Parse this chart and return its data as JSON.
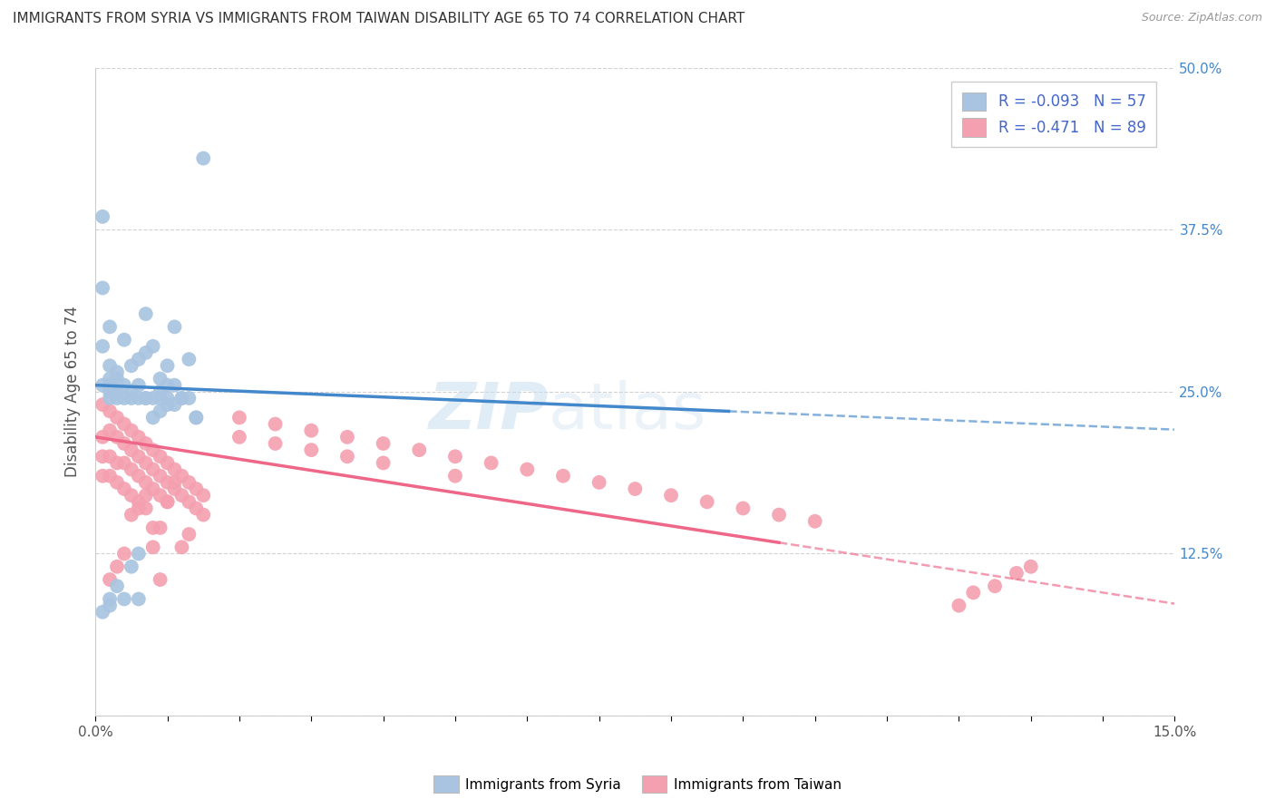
{
  "title": "IMMIGRANTS FROM SYRIA VS IMMIGRANTS FROM TAIWAN DISABILITY AGE 65 TO 74 CORRELATION CHART",
  "source": "Source: ZipAtlas.com",
  "ylabel": "Disability Age 65 to 74",
  "xlim": [
    0.0,
    0.15
  ],
  "ylim": [
    0.0,
    0.5
  ],
  "grid_color": "#cccccc",
  "background_color": "#ffffff",
  "syria_color": "#a8c4e0",
  "taiwan_color": "#f4a0b0",
  "syria_line_color": "#4488cc",
  "taiwan_line_color": "#ee6688",
  "syria_R": -0.093,
  "syria_N": 57,
  "taiwan_R": -0.471,
  "taiwan_N": 89,
  "watermark_zip": "ZIP",
  "watermark_atlas": "atlas",
  "legend_label_syria": "Immigrants from Syria",
  "legend_label_taiwan": "Immigrants from Taiwan",
  "syria_line_x0": 0.0,
  "syria_line_y0": 0.255,
  "syria_line_x1": 0.14,
  "syria_line_y1": 0.223,
  "taiwan_line_x0": 0.0,
  "taiwan_line_y0": 0.215,
  "taiwan_line_x1": 0.14,
  "taiwan_line_y1": 0.095,
  "syria_scatter_x": [
    0.001,
    0.001,
    0.001,
    0.001,
    0.002,
    0.002,
    0.002,
    0.002,
    0.002,
    0.002,
    0.003,
    0.003,
    0.003,
    0.003,
    0.003,
    0.004,
    0.004,
    0.004,
    0.005,
    0.005,
    0.005,
    0.006,
    0.006,
    0.006,
    0.007,
    0.007,
    0.007,
    0.008,
    0.008,
    0.009,
    0.009,
    0.009,
    0.01,
    0.01,
    0.01,
    0.011,
    0.011,
    0.012,
    0.013,
    0.013,
    0.014,
    0.001,
    0.002,
    0.002,
    0.003,
    0.004,
    0.005,
    0.006,
    0.006,
    0.007,
    0.008,
    0.009,
    0.01,
    0.011,
    0.012,
    0.014,
    0.015
  ],
  "syria_scatter_y": [
    0.255,
    0.285,
    0.33,
    0.385,
    0.245,
    0.25,
    0.255,
    0.26,
    0.27,
    0.3,
    0.245,
    0.25,
    0.255,
    0.26,
    0.265,
    0.245,
    0.255,
    0.29,
    0.245,
    0.25,
    0.27,
    0.245,
    0.255,
    0.275,
    0.245,
    0.28,
    0.31,
    0.245,
    0.285,
    0.245,
    0.25,
    0.26,
    0.245,
    0.255,
    0.27,
    0.255,
    0.3,
    0.245,
    0.245,
    0.275,
    0.23,
    0.08,
    0.085,
    0.09,
    0.1,
    0.09,
    0.115,
    0.09,
    0.125,
    0.245,
    0.23,
    0.235,
    0.24,
    0.24,
    0.245,
    0.23,
    0.43
  ],
  "taiwan_scatter_x": [
    0.001,
    0.001,
    0.001,
    0.001,
    0.002,
    0.002,
    0.002,
    0.002,
    0.003,
    0.003,
    0.003,
    0.003,
    0.004,
    0.004,
    0.004,
    0.004,
    0.005,
    0.005,
    0.005,
    0.005,
    0.006,
    0.006,
    0.006,
    0.006,
    0.007,
    0.007,
    0.007,
    0.007,
    0.008,
    0.008,
    0.008,
    0.009,
    0.009,
    0.009,
    0.01,
    0.01,
    0.01,
    0.011,
    0.011,
    0.012,
    0.012,
    0.013,
    0.013,
    0.014,
    0.014,
    0.015,
    0.015,
    0.02,
    0.02,
    0.025,
    0.025,
    0.03,
    0.03,
    0.035,
    0.035,
    0.04,
    0.04,
    0.045,
    0.05,
    0.05,
    0.055,
    0.06,
    0.065,
    0.07,
    0.075,
    0.08,
    0.085,
    0.09,
    0.095,
    0.1,
    0.002,
    0.003,
    0.004,
    0.005,
    0.006,
    0.007,
    0.008,
    0.009,
    0.01,
    0.011,
    0.012,
    0.013,
    0.125,
    0.13,
    0.12,
    0.128,
    0.122,
    0.008,
    0.009
  ],
  "taiwan_scatter_y": [
    0.24,
    0.215,
    0.2,
    0.185,
    0.235,
    0.22,
    0.2,
    0.185,
    0.23,
    0.215,
    0.195,
    0.18,
    0.225,
    0.21,
    0.195,
    0.175,
    0.22,
    0.205,
    0.19,
    0.17,
    0.215,
    0.2,
    0.185,
    0.165,
    0.21,
    0.195,
    0.18,
    0.16,
    0.205,
    0.19,
    0.175,
    0.2,
    0.185,
    0.17,
    0.195,
    0.18,
    0.165,
    0.19,
    0.175,
    0.185,
    0.17,
    0.18,
    0.165,
    0.175,
    0.16,
    0.17,
    0.155,
    0.23,
    0.215,
    0.225,
    0.21,
    0.22,
    0.205,
    0.215,
    0.2,
    0.21,
    0.195,
    0.205,
    0.2,
    0.185,
    0.195,
    0.19,
    0.185,
    0.18,
    0.175,
    0.17,
    0.165,
    0.16,
    0.155,
    0.15,
    0.105,
    0.115,
    0.125,
    0.155,
    0.16,
    0.17,
    0.145,
    0.145,
    0.165,
    0.18,
    0.13,
    0.14,
    0.1,
    0.115,
    0.085,
    0.11,
    0.095,
    0.13,
    0.105
  ]
}
